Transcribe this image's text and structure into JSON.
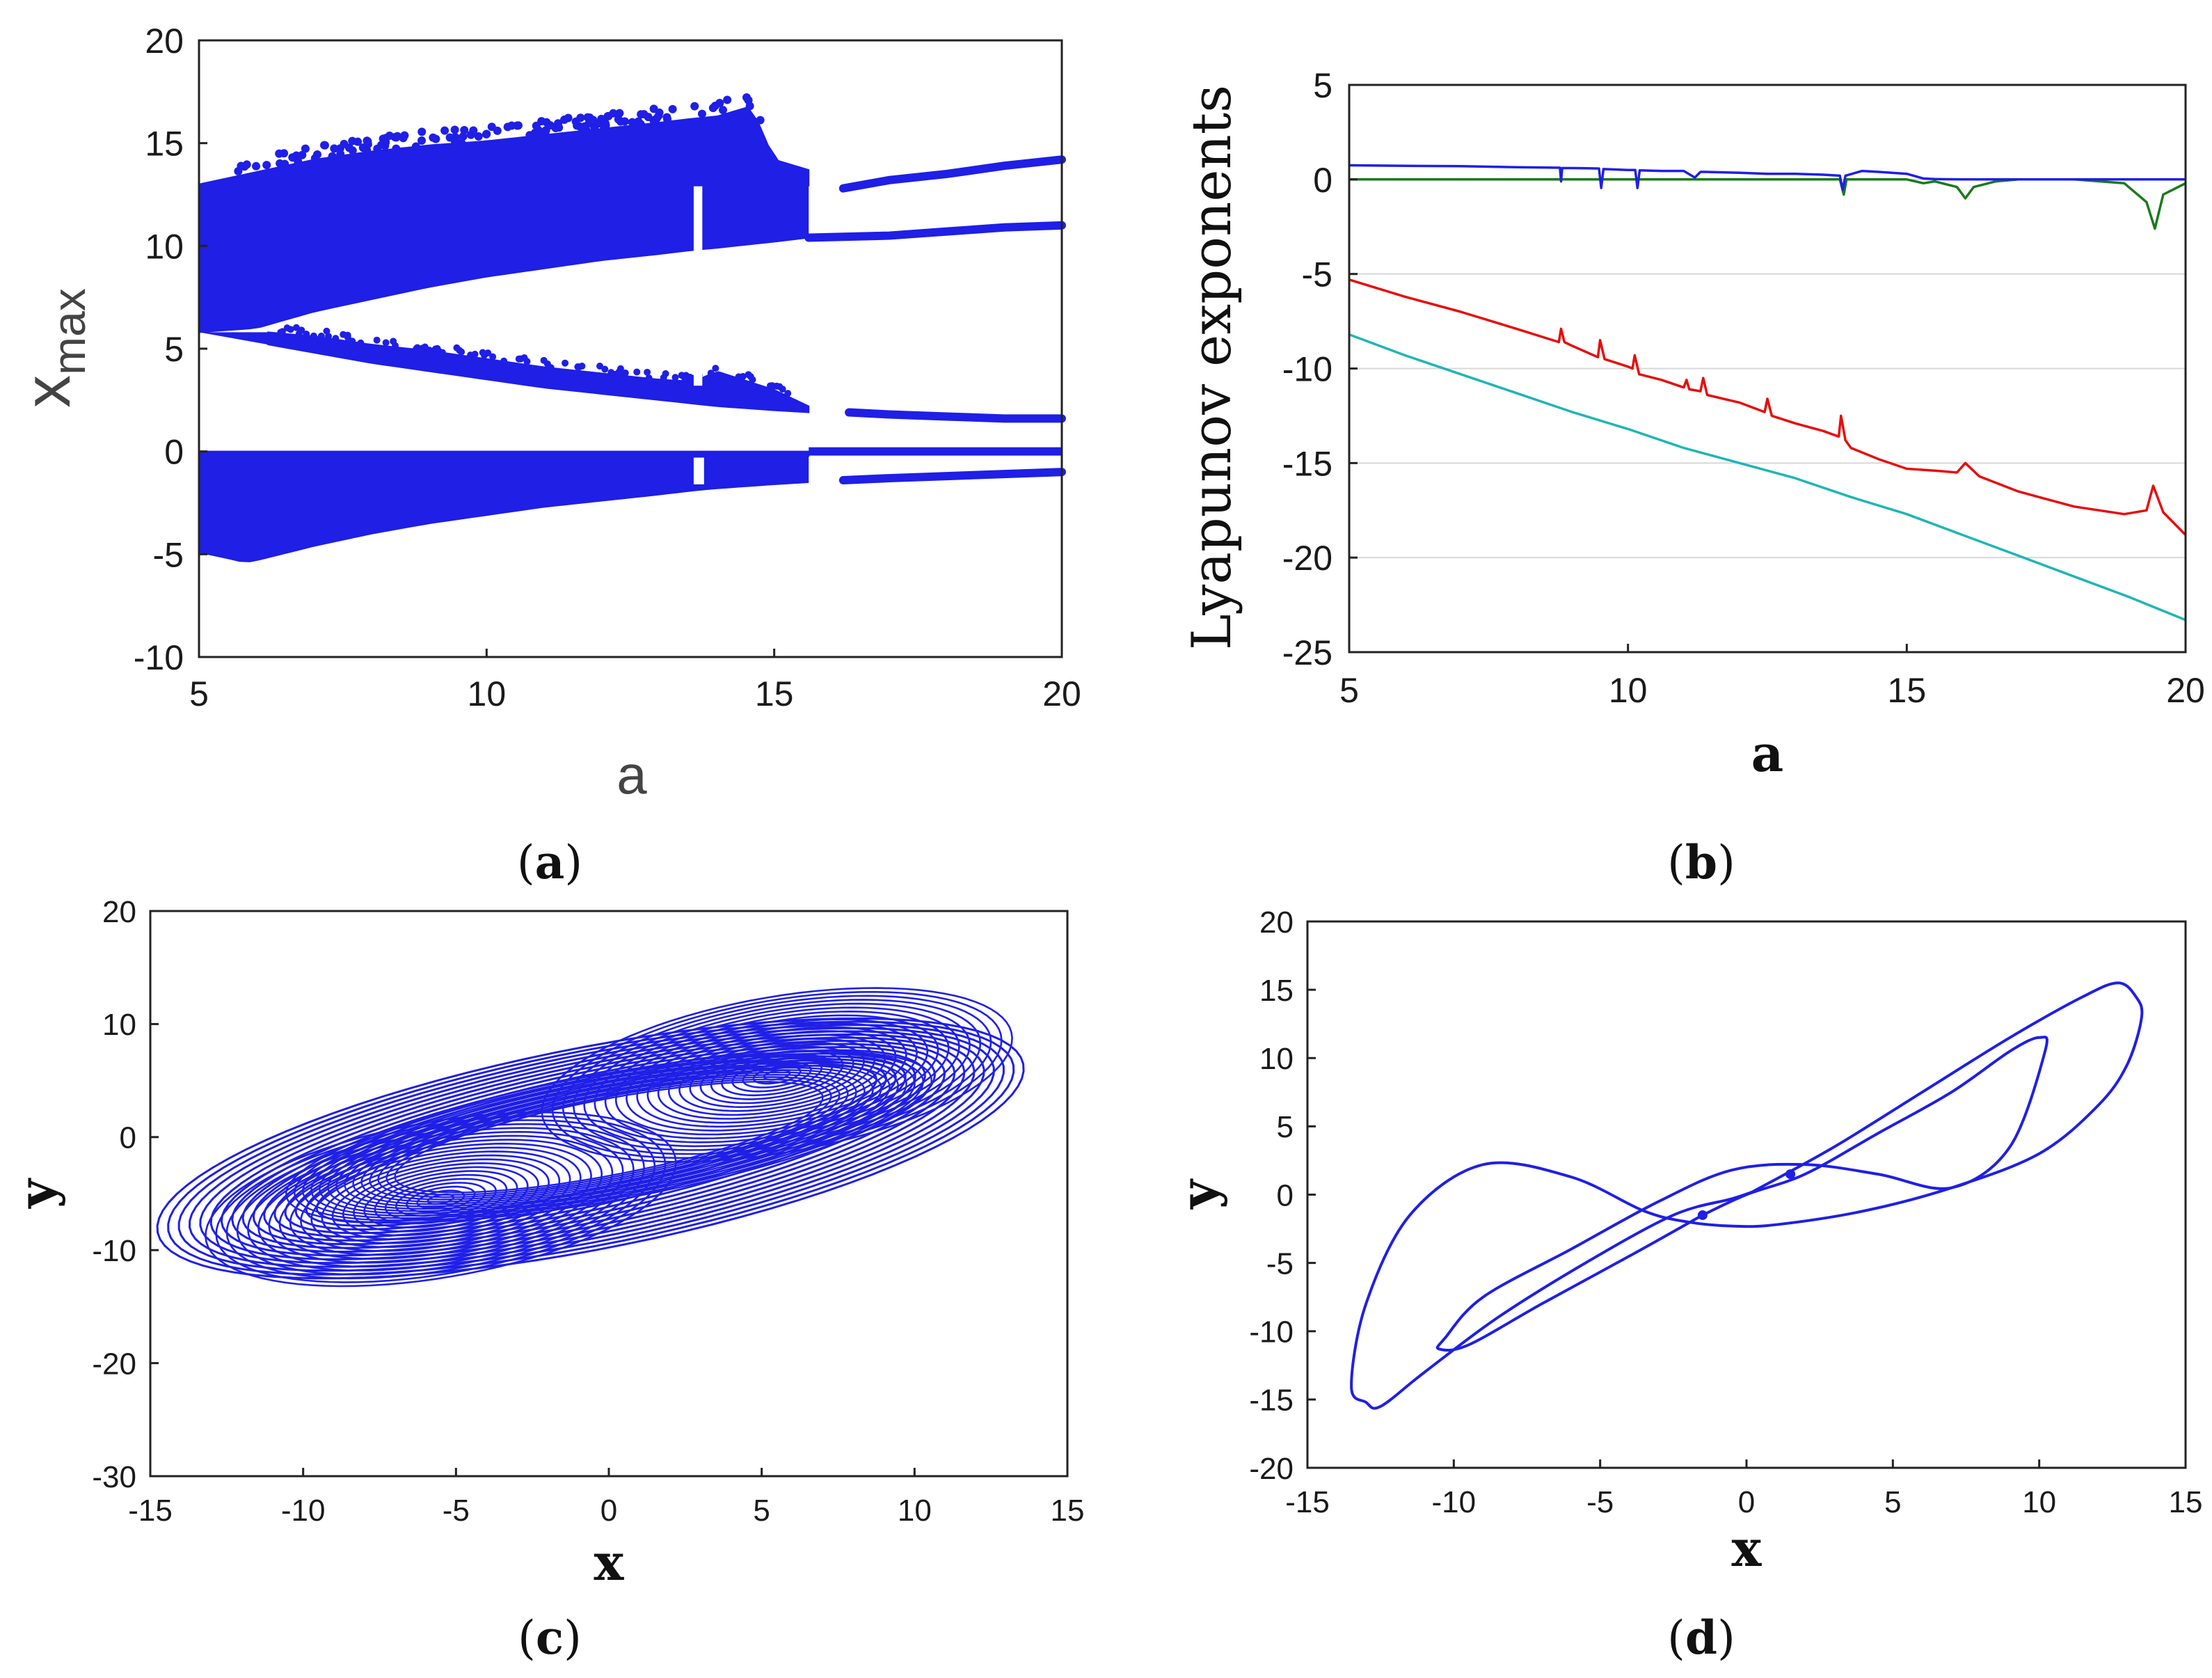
{
  "chart_data": [
    {
      "id": "a",
      "type": "scatter",
      "caption": "(a)",
      "caption_letter": "a",
      "title": "",
      "xlabel": "a",
      "ylabel_main": "x",
      "ylabel_sub": "max",
      "xlim": [
        5,
        20
      ],
      "ylim": [
        -10,
        20
      ],
      "xticks": [
        "5",
        "10",
        "15",
        "20"
      ],
      "yticks": [
        "-10",
        "-5",
        "0",
        "5",
        "10",
        "15",
        "20"
      ],
      "color": "#1f1fe6",
      "branches": [
        {
          "name": "chaotic upper band top",
          "x": [
            5,
            6,
            7,
            8,
            9,
            10,
            11,
            12,
            13,
            13.6,
            14,
            14.6,
            15,
            15.6
          ],
          "values": [
            13,
            13.6,
            14.2,
            14.6,
            14.9,
            15.1,
            15.4,
            15.7,
            16.0,
            16.2,
            16.3,
            16.8,
            14.2,
            13.7
          ]
        },
        {
          "name": "chaotic upper band bottom",
          "x": [
            5,
            6,
            7,
            8,
            9,
            10,
            11,
            12,
            13,
            13.6,
            14,
            15,
            15.6
          ],
          "values": [
            5.8,
            6.0,
            6.8,
            7.4,
            8.0,
            8.5,
            8.9,
            9.3,
            9.6,
            9.8,
            9.9,
            10.2,
            10.4
          ]
        },
        {
          "name": "period-2 upper",
          "x": [
            16.2,
            17,
            18,
            19,
            20
          ],
          "values": [
            12.8,
            13.2,
            13.5,
            13.9,
            14.2
          ]
        },
        {
          "name": "period-2 middle",
          "x": [
            15.6,
            17,
            18,
            19,
            20
          ],
          "values": [
            10.4,
            10.5,
            10.7,
            10.9,
            11.0
          ]
        },
        {
          "name": "middle band top",
          "x": [
            6.2,
            7,
            8,
            9,
            10,
            11,
            12,
            13,
            13.6,
            14,
            15,
            15.6
          ],
          "values": [
            5.8,
            5.6,
            5.2,
            4.9,
            4.5,
            4.1,
            3.8,
            3.5,
            3.4,
            3.9,
            3.0,
            2.2
          ]
        },
        {
          "name": "middle band bottom",
          "x": [
            5,
            6,
            7,
            8,
            9,
            10,
            11,
            12,
            13,
            14,
            15,
            15.6
          ],
          "values": [
            5.8,
            5.3,
            4.8,
            4.3,
            3.9,
            3.5,
            3.1,
            2.8,
            2.5,
            2.2,
            2.0,
            1.9
          ]
        },
        {
          "name": "period-2 low",
          "x": [
            16.3,
            17,
            18,
            19,
            20
          ],
          "values": [
            1.9,
            1.8,
            1.7,
            1.6,
            1.6
          ]
        },
        {
          "name": "lower band top",
          "x": [
            5,
            10,
            13.6,
            15,
            16,
            20
          ],
          "values": [
            0,
            0,
            0,
            0,
            0,
            0
          ]
        },
        {
          "name": "lower band bottom",
          "x": [
            5,
            5.5,
            5.8,
            6,
            7,
            8,
            9,
            10,
            11,
            12,
            13,
            13.6,
            14,
            15,
            15.6
          ],
          "values": [
            -4.9,
            -5.2,
            -5.4,
            -5.3,
            -4.6,
            -4.0,
            -3.5,
            -3.1,
            -2.7,
            -2.4,
            -2.1,
            -1.9,
            -1.8,
            -1.6,
            -1.5
          ]
        },
        {
          "name": "period-2 negative",
          "x": [
            16.2,
            17,
            18,
            19,
            20
          ],
          "values": [
            -1.4,
            -1.3,
            -1.2,
            -1.1,
            -1.0
          ]
        }
      ]
    },
    {
      "id": "b",
      "type": "line",
      "caption": "(b)",
      "caption_letter": "b",
      "title": "",
      "xlabel": "a",
      "ylabel": "Lyapunov exponents",
      "xlim": [
        5,
        20
      ],
      "ylim": [
        -25,
        5
      ],
      "xticks": [
        "5",
        "10",
        "15",
        "20"
      ],
      "yticks": [
        "-25",
        "-20",
        "-15",
        "-10",
        "-5",
        "0",
        "5"
      ],
      "grid": "horizontal",
      "series": [
        {
          "name": "LE1",
          "color": "#1f1fe6",
          "x": [
            5,
            6,
            7,
            8,
            8.78,
            8.8,
            8.82,
            9,
            9.48,
            9.52,
            9.56,
            10,
            10.13,
            10.17,
            10.21,
            10.6,
            11,
            11.2,
            11.3,
            11.4,
            12,
            12.5,
            13,
            13.5,
            13.8,
            13.85,
            13.9,
            14.2,
            14.5,
            15,
            15.3,
            15.5,
            16,
            16.5,
            17,
            18,
            19,
            20
          ],
          "values": [
            0.75,
            0.72,
            0.7,
            0.65,
            0.62,
            -0.1,
            0.6,
            0.6,
            0.58,
            -0.45,
            0.55,
            0.5,
            0.5,
            -0.45,
            0.48,
            0.45,
            0.45,
            0.1,
            0.4,
            0.4,
            0.35,
            0.3,
            0.3,
            0.25,
            0.2,
            -0.55,
            0.2,
            0.45,
            0.4,
            0.3,
            0.05,
            0.02,
            0,
            0,
            0,
            0,
            0,
            0
          ]
        },
        {
          "name": "LE2",
          "color": "#1a7a1a",
          "x": [
            5,
            10,
            13.8,
            13.87,
            13.92,
            15,
            15.3,
            15.5,
            15.9,
            16.05,
            16.2,
            16.6,
            17,
            18,
            18.9,
            19.3,
            19.45,
            19.6,
            20
          ],
          "values": [
            0,
            0,
            0,
            -0.8,
            0,
            0,
            -0.2,
            -0.1,
            -0.4,
            -1.0,
            -0.4,
            -0.1,
            0,
            0,
            -0.2,
            -1.2,
            -2.6,
            -0.8,
            -0.2
          ]
        },
        {
          "name": "LE3",
          "color": "#e60d0d",
          "x": [
            5,
            6,
            7,
            8,
            8.76,
            8.8,
            8.86,
            9,
            9.46,
            9.5,
            9.58,
            10,
            10.08,
            10.12,
            10.2,
            10.6,
            11,
            11.05,
            11.1,
            11.3,
            11.35,
            11.42,
            12,
            12.45,
            12.5,
            12.58,
            13,
            13.5,
            13.78,
            13.82,
            13.9,
            14,
            14.5,
            15,
            15.5,
            15.9,
            16.05,
            16.3,
            17,
            18,
            18.9,
            19.3,
            19.42,
            19.6,
            20
          ],
          "values": [
            -5.3,
            -6.2,
            -7.0,
            -7.9,
            -8.6,
            -7.9,
            -8.6,
            -8.8,
            -9.4,
            -8.5,
            -9.5,
            -9.9,
            -10.0,
            -9.3,
            -10.3,
            -10.6,
            -11.0,
            -10.6,
            -11.1,
            -11.2,
            -10.5,
            -11.4,
            -11.8,
            -12.3,
            -11.6,
            -12.5,
            -12.9,
            -13.3,
            -13.6,
            -12.5,
            -13.8,
            -14.2,
            -14.8,
            -15.3,
            -15.4,
            -15.5,
            -15.0,
            -15.7,
            -16.5,
            -17.3,
            -17.7,
            -17.5,
            -16.2,
            -17.6,
            -18.8
          ]
        },
        {
          "name": "LE4",
          "color": "#1fb5b5",
          "x": [
            5,
            6,
            7,
            8,
            9,
            10,
            11,
            12,
            13,
            14,
            15,
            16,
            17,
            18,
            19,
            20
          ],
          "values": [
            -8.2,
            -9.3,
            -10.3,
            -11.3,
            -12.3,
            -13.2,
            -14.2,
            -15.0,
            -15.8,
            -16.8,
            -17.7,
            -18.8,
            -19.9,
            -21.0,
            -22.1,
            -23.3
          ]
        }
      ]
    },
    {
      "id": "c",
      "type": "line",
      "caption": "(c)",
      "caption_letter": "c",
      "title": "",
      "xlabel": "x",
      "ylabel": "y",
      "xlim": [
        -15,
        15
      ],
      "ylim": [
        -30,
        20
      ],
      "xticks": [
        "-15",
        "-10",
        "-5",
        "0",
        "5",
        "10",
        "15"
      ],
      "yticks": [
        "-30",
        "-20",
        "-10",
        "0",
        "10",
        "20"
      ],
      "color": "#1f1fe6",
      "attractor": "chaotic double-scroll",
      "scroll_centers": [
        [
          -5.5,
          -5.5
        ],
        [
          5.5,
          5.5
        ]
      ],
      "envelope": {
        "x_range": [
          -13,
          12.3
        ],
        "y_range": [
          -20,
          17.8
        ]
      }
    },
    {
      "id": "d",
      "type": "line",
      "caption": "(d)",
      "caption_letter": "d",
      "title": "",
      "xlabel": "x",
      "ylabel": "y",
      "xlim": [
        -15,
        15
      ],
      "ylim": [
        -20,
        20
      ],
      "xticks": [
        "-15",
        "-10",
        "-5",
        "0",
        "5",
        "10",
        "15"
      ],
      "yticks": [
        "-20",
        "-15",
        "-10",
        "-5",
        "0",
        "5",
        "10",
        "15",
        "20"
      ],
      "color": "#1f1fe6",
      "attractor": "period-2 limit cycle",
      "loops": [
        {
          "name": "outer cycle",
          "x": [
            0.2,
            3,
            6,
            9,
            11.5,
            12.7,
            13.3,
            13.5,
            13.0,
            12.0,
            10.0,
            7.0,
            4.0,
            1.0,
            -0.5,
            -2.0,
            -3.5,
            -6.0,
            -9.0,
            -11.5,
            -13.0,
            -13.5,
            -13.0,
            -12.5,
            -11.0,
            -8.5,
            -5.5,
            -2.5,
            -0.5,
            0.2
          ],
          "values": [
            0.2,
            3.5,
            7.5,
            11.5,
            14.5,
            15.5,
            14.5,
            13.0,
            9.5,
            6.5,
            3.0,
            0.5,
            -1.2,
            -2.2,
            -2.3,
            -2.0,
            -1.2,
            1.3,
            2.2,
            -1.5,
            -8.0,
            -14.0,
            -15.2,
            -15.5,
            -13.0,
            -9.0,
            -5.0,
            -1.5,
            -0.3,
            0.2
          ]
        },
        {
          "name": "inner cycle",
          "x": [
            -1.5,
            -4.0,
            -7.0,
            -9.5,
            -10.5,
            -10.3,
            -9.0,
            -6.0,
            -3.0,
            -0.5,
            2.0,
            4.5,
            7.0,
            9.0,
            10.2,
            10.0,
            9.0,
            7.0,
            4.5,
            2.0,
            0,
            -1.5
          ],
          "values": [
            -1.5,
            -4.5,
            -8.0,
            -11.0,
            -11.3,
            -10.5,
            -7.5,
            -4.0,
            -0.5,
            1.8,
            2.2,
            1.5,
            0.5,
            3.5,
            10.5,
            11.5,
            10.5,
            7.5,
            4.5,
            1.5,
            0,
            -1.5
          ]
        }
      ],
      "markers": [
        [
          1.5,
          1.5
        ],
        [
          -1.5,
          -1.5
        ]
      ]
    }
  ]
}
